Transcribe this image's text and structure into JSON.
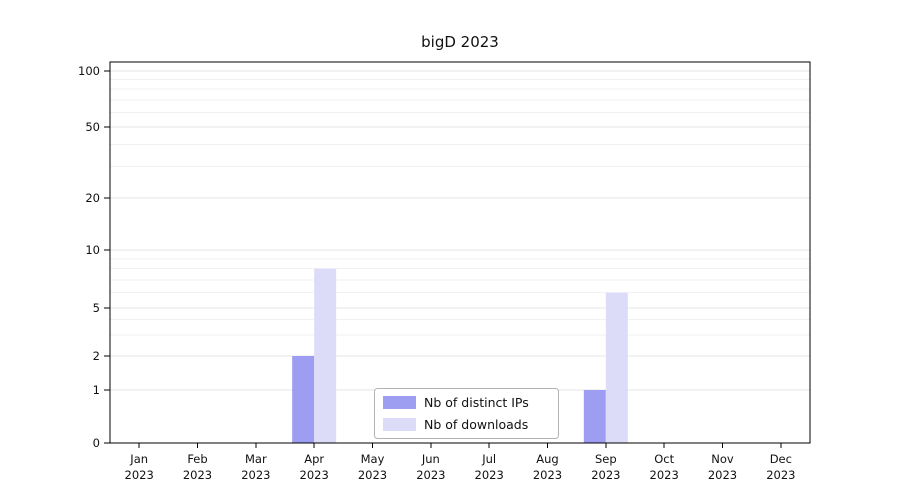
{
  "chart_data": {
    "type": "bar",
    "title": "bigD 2023",
    "categories": [
      "Jan",
      "Feb",
      "Mar",
      "Apr",
      "May",
      "Jun",
      "Jul",
      "Aug",
      "Sep",
      "Oct",
      "Nov",
      "Dec"
    ],
    "year_label": "2023",
    "series": [
      {
        "name": "Nb of distinct IPs",
        "color": "#9d9df1",
        "values": [
          0,
          0,
          0,
          2,
          0,
          0,
          0,
          0,
          1,
          0,
          0,
          0
        ]
      },
      {
        "name": "Nb of downloads",
        "color": "#dcdcf9",
        "values": [
          0,
          0,
          0,
          8,
          0,
          0,
          0,
          0,
          6,
          0,
          0,
          0
        ]
      }
    ],
    "yticks": [
      0,
      1,
      2,
      5,
      10,
      20,
      50,
      100
    ],
    "yminor": [
      3,
      4,
      6,
      7,
      8,
      9,
      30,
      40,
      60,
      70,
      80,
      90
    ],
    "ylim": [
      0,
      100
    ],
    "scale": "symlog",
    "grid": true,
    "legend_position": "lower center",
    "colors": {
      "grid_major": "#e6e6e6",
      "grid_minor": "#f2f2f2",
      "axis": "#000000"
    }
  }
}
